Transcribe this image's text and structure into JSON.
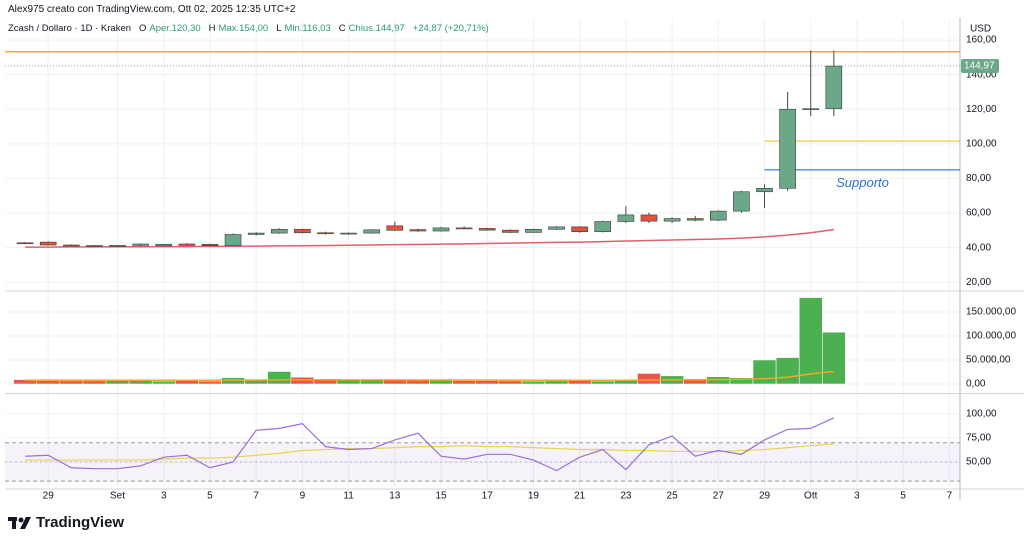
{
  "header": {
    "text": "Alex975 creato con TradingView.com, Ott 02, 2025 12:35 UTC+2"
  },
  "chart_data": {
    "type": "candlestick",
    "legend": {
      "symbol": "Zcash / Dollaro · 1D · Kraken",
      "fields": [
        {
          "key": "O",
          "value": "Aper.120,30"
        },
        {
          "key": "H",
          "value": "Max.154,00"
        },
        {
          "key": "L",
          "value": "Min.116,03"
        },
        {
          "key": "C",
          "value": "Chius.144,97"
        }
      ],
      "change": "+24,87 (+20,71%)"
    },
    "currency": "USD",
    "x": [
      0,
      1,
      2,
      3,
      4,
      5,
      6,
      7,
      8,
      9,
      10,
      11,
      12,
      13,
      14,
      15,
      16,
      17,
      18,
      19,
      20,
      21,
      22,
      23,
      24,
      25,
      26,
      27,
      28,
      29,
      30,
      31,
      32,
      33,
      34,
      35
    ],
    "xlim": [
      -0.87,
      40.46
    ],
    "xticks": [
      {
        "value": 1,
        "label": "29"
      },
      {
        "value": 4,
        "label": "Set"
      },
      {
        "value": 6,
        "label": "3"
      },
      {
        "value": 8,
        "label": "5"
      },
      {
        "value": 10,
        "label": "7"
      },
      {
        "value": 12,
        "label": "9"
      },
      {
        "value": 14,
        "label": "11"
      },
      {
        "value": 16,
        "label": "13"
      },
      {
        "value": 18,
        "label": "15"
      },
      {
        "value": 20,
        "label": "17"
      },
      {
        "value": 22,
        "label": "19"
      },
      {
        "value": 24,
        "label": "21"
      },
      {
        "value": 26,
        "label": "23"
      },
      {
        "value": 28,
        "label": "25"
      },
      {
        "value": 30,
        "label": "27"
      },
      {
        "value": 32,
        "label": "29"
      },
      {
        "value": 34,
        "label": "Ott"
      },
      {
        "value": 36,
        "label": "3"
      },
      {
        "value": 38,
        "label": "5"
      },
      {
        "value": 40,
        "label": "7"
      }
    ],
    "open": [
      42.8,
      43.2,
      41.5,
      41.2,
      41.1,
      41.3,
      41.0,
      42.1,
      41.9,
      41.1,
      47.6,
      48.4,
      50.6,
      48.6,
      48.0,
      48.4,
      52.6,
      50.4,
      49.6,
      51.4,
      51.1,
      50.1,
      48.8,
      50.6,
      52.0,
      49.2,
      55.1,
      58.9,
      55.3,
      56.8,
      55.9,
      61.1,
      72.3,
      74.3,
      120.0,
      120.3
    ],
    "high": [
      43.2,
      43.6,
      41.9,
      41.6,
      41.5,
      42.4,
      41.8,
      42.6,
      42.3,
      48.2,
      49.0,
      51.2,
      51.0,
      49.2,
      48.9,
      50.6,
      55.0,
      51.0,
      52.0,
      52.3,
      51.5,
      50.6,
      51.0,
      52.5,
      52.4,
      55.6,
      64.0,
      60.2,
      57.5,
      58.4,
      61.6,
      72.8,
      76.6,
      130.0,
      154.0,
      154.0
    ],
    "low": [
      42.2,
      41.2,
      40.8,
      40.7,
      40.6,
      40.8,
      40.8,
      41.5,
      41.0,
      40.9,
      47.1,
      48.0,
      48.2,
      47.6,
      47.5,
      48.1,
      49.8,
      49.2,
      49.3,
      50.6,
      49.8,
      48.4,
      48.5,
      50.2,
      48.6,
      48.8,
      54.2,
      54.2,
      54.3,
      55.2,
      55.4,
      60.2,
      63.0,
      72.8,
      116.03,
      116.03
    ],
    "close": [
      42.6,
      41.5,
      41.1,
      41.0,
      41.3,
      42.1,
      41.9,
      41.3,
      41.1,
      47.6,
      48.4,
      50.6,
      48.6,
      48.0,
      48.4,
      50.3,
      50.0,
      49.6,
      51.4,
      51.1,
      50.1,
      48.8,
      50.6,
      52.0,
      49.2,
      55.1,
      58.9,
      55.3,
      56.8,
      55.9,
      61.1,
      72.3,
      74.3,
      120.0,
      120.3,
      144.97
    ],
    "up_color": "#6ca789",
    "down_color": "#e0533e",
    "ma": {
      "color": "#e0606b",
      "values": [
        40.3,
        40.3,
        40.4,
        40.4,
        40.5,
        40.5,
        40.6,
        40.6,
        40.7,
        40.8,
        40.9,
        41.0,
        41.1,
        41.2,
        41.4,
        41.5,
        41.7,
        41.8,
        42.0,
        42.2,
        42.4,
        42.6,
        42.8,
        43.0,
        43.2,
        43.5,
        43.8,
        44.1,
        44.4,
        44.7,
        45.0,
        45.5,
        46.2,
        47.2,
        48.6,
        50.4
      ]
    },
    "ylim": [
      15.5,
      171.6
    ],
    "yticks": [
      {
        "value": 20,
        "label": "20,00"
      },
      {
        "value": 40,
        "label": "40,00"
      },
      {
        "value": 60,
        "label": "60,00"
      },
      {
        "value": 80,
        "label": "80,00"
      },
      {
        "value": 100,
        "label": "100,00"
      },
      {
        "value": 120,
        "label": "120,00"
      },
      {
        "value": 140,
        "label": "140,00"
      },
      {
        "value": 160,
        "label": "160,00"
      }
    ],
    "last_price": {
      "value": 144.97,
      "label": "144,97"
    },
    "levels": [
      {
        "value": 153.2,
        "color": "#f5891f"
      },
      {
        "value": 101.6,
        "color": "#f2c230",
        "x_start": 32
      },
      {
        "value": 85,
        "color": "#2f6fd6",
        "x_start": 32,
        "label": "Supporto"
      }
    ],
    "grid": true,
    "volume": {
      "values": [
        9000,
        7000,
        6500,
        6500,
        7000,
        10000,
        6000,
        7500,
        6000,
        13000,
        8000,
        26000,
        14000,
        9000,
        8000,
        8000,
        9000,
        9000,
        8000,
        7000,
        7000,
        6500,
        6000,
        6500,
        7000,
        6000,
        9000,
        22000,
        17000,
        10000,
        15000,
        13000,
        50000,
        55000,
        180000,
        108000
      ],
      "up_color": "#4caf50",
      "down_color": "#ef5350",
      "ma": {
        "color": "#f5a623",
        "values": [
          8000,
          8000,
          7900,
          7800,
          7800,
          7900,
          7900,
          7900,
          7800,
          8000,
          8000,
          8500,
          8700,
          8700,
          8600,
          8500,
          8500,
          8400,
          8300,
          8200,
          8100,
          8000,
          7900,
          7800,
          7700,
          7600,
          7700,
          8200,
          8600,
          8800,
          9200,
          9500,
          11000,
          14000,
          21000,
          26000
        ]
      },
      "ylim": [
        -16700,
        191700
      ],
      "yticks": [
        {
          "value": 0,
          "label": "0,00"
        },
        {
          "value": 50000,
          "label": "50.000,00"
        },
        {
          "value": 100000,
          "label": "100.000,00"
        },
        {
          "value": 150000,
          "label": "150.000,00"
        }
      ]
    },
    "rsi": {
      "color": "#9c6fd6",
      "values": [
        56,
        57,
        44,
        43,
        43,
        46,
        55,
        57,
        44,
        50,
        83,
        85,
        90,
        66,
        63,
        64,
        73,
        80,
        56,
        53,
        58,
        58,
        52,
        41,
        55,
        63,
        42,
        68,
        77,
        56,
        62,
        58,
        73,
        84,
        85,
        96
      ],
      "ma": {
        "color": "#e8d44d",
        "values": [
          52,
          52,
          52,
          52,
          52,
          52,
          53,
          54,
          54,
          55,
          57,
          59,
          62,
          63,
          64,
          64,
          65,
          66,
          66,
          67,
          66,
          66,
          65,
          64,
          63,
          63,
          62,
          62,
          61,
          61,
          61,
          62,
          63,
          65,
          67,
          69
        ]
      },
      "band": [
        30,
        70
      ],
      "ylim": [
        22.9,
        119.8
      ],
      "yticks": [
        {
          "value": 50,
          "label": "50,00"
        },
        {
          "value": 75,
          "label": "75,00"
        },
        {
          "value": 100,
          "label": "100,00"
        }
      ]
    }
  },
  "footer": {
    "brand": "TradingView"
  }
}
